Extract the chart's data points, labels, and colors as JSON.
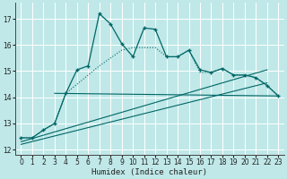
{
  "xlabel": "Humidex (Indice chaleur)",
  "bg_color": "#c0e8e8",
  "grid_color": "#ffffff",
  "line_color": "#006666",
  "xlim": [
    -0.5,
    23.5
  ],
  "ylim": [
    11.8,
    17.6
  ],
  "yticks": [
    12,
    13,
    14,
    15,
    16,
    17
  ],
  "xticks": [
    0,
    1,
    2,
    3,
    4,
    5,
    6,
    7,
    8,
    9,
    10,
    11,
    12,
    13,
    14,
    15,
    16,
    17,
    18,
    19,
    20,
    21,
    22,
    23
  ],
  "main_line_x": [
    0,
    1,
    2,
    3,
    4,
    5,
    6,
    7,
    8,
    9,
    10,
    11,
    12,
    13,
    14,
    15,
    16,
    17,
    18,
    19,
    20,
    21,
    22,
    23
  ],
  "main_line_y": [
    12.45,
    12.45,
    12.75,
    13.0,
    14.15,
    15.05,
    15.2,
    17.2,
    16.8,
    16.05,
    15.55,
    16.65,
    16.6,
    15.55,
    15.55,
    15.8,
    15.05,
    14.95,
    15.1,
    14.85,
    14.85,
    14.75,
    14.45,
    14.05
  ],
  "dotted_line_x": [
    0,
    1,
    2,
    3,
    4,
    5,
    6,
    7,
    8,
    9,
    10,
    11,
    12,
    13,
    14,
    15,
    16,
    17,
    18,
    19,
    20,
    21,
    22,
    23
  ],
  "dotted_line_y": [
    12.45,
    12.45,
    12.75,
    13.0,
    14.15,
    14.5,
    14.85,
    15.2,
    15.5,
    15.8,
    15.9,
    15.9,
    15.9,
    15.55,
    15.55,
    15.8,
    14.95,
    14.95,
    15.1,
    14.85,
    14.85,
    14.75,
    14.45,
    14.05
  ],
  "horiz_line_x": [
    3,
    23
  ],
  "horiz_line_y": [
    14.15,
    14.05
  ],
  "trend1_x": [
    0,
    22
  ],
  "trend1_y": [
    12.3,
    15.05
  ],
  "trend2_x": [
    0,
    22
  ],
  "trend2_y": [
    12.2,
    14.55
  ]
}
